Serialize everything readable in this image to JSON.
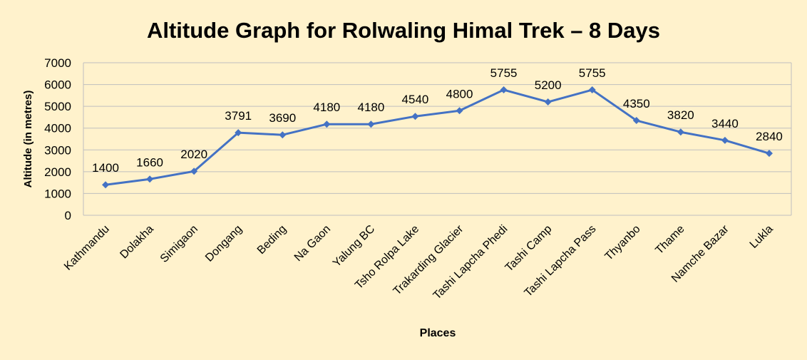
{
  "colors": {
    "background": "#FFF2CC",
    "line": "#4472C4",
    "grid": "#BFBFBF",
    "text": "#000000"
  },
  "chart_data": {
    "type": "line",
    "title": "Altitude Graph for Rolwaling Himal Trek – 8 Days",
    "xlabel": "Places",
    "ylabel": "Altitude (in metres)",
    "ylim": [
      0,
      7000
    ],
    "yticks": [
      0,
      1000,
      2000,
      3000,
      4000,
      5000,
      6000,
      7000
    ],
    "grid": true,
    "legend": "none",
    "categories": [
      "Kathmandu",
      "Dolakha",
      "Simigaon",
      "Dongang",
      "Beding",
      "Na Gaon",
      "Yalung BC",
      "Tsho Rolpa Lake",
      "Trakarding Glacier",
      "Tashi Lapcha Phedi",
      "Tashi Camp",
      "Tashi Lapcha Pass",
      "Thyanbo",
      "Thame",
      "Namche Bazar",
      "Lukla"
    ],
    "series": [
      {
        "values": [
          1400,
          1660,
          2020,
          3791,
          3690,
          4180,
          4180,
          4540,
          4800,
          5755,
          5200,
          5755,
          4350,
          3820,
          3440,
          2840
        ]
      }
    ]
  }
}
